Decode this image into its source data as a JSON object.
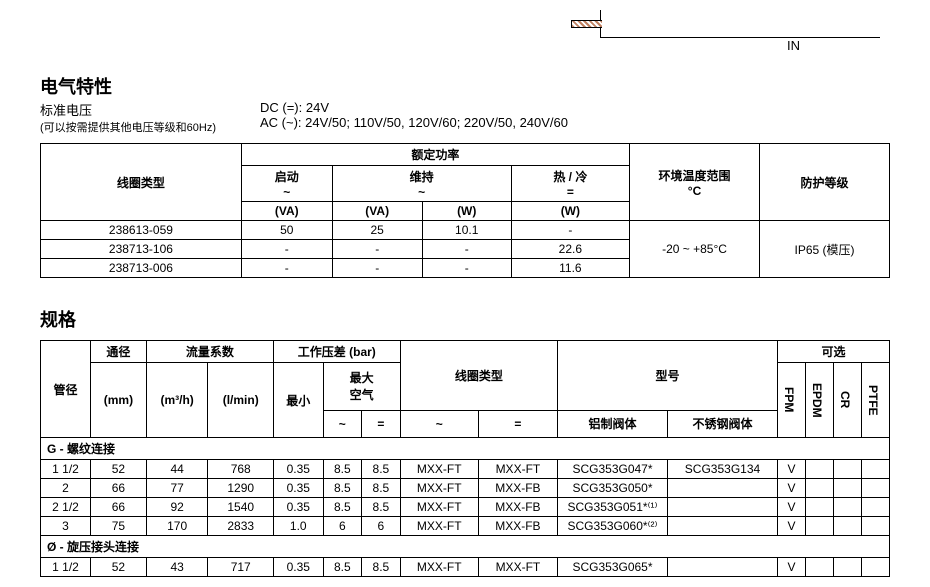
{
  "diagram_label": "IN",
  "section1": {
    "title": "电气特性",
    "std_voltage_label": "标准电压",
    "note": "(可以按需提供其他电压等级和60Hz)",
    "dc_line": "DC (=): 24V",
    "ac_line": "AC (~): 24V/50; 110V/50, 120V/60; 220V/50, 240V/60"
  },
  "table1": {
    "headers": {
      "coil_type": "线圈类型",
      "rated_power": "额定功率",
      "start": "启动",
      "hold": "维持",
      "hot_cold": "热 / 冷",
      "ambient": "环境温度范围\n°C",
      "ip": "防护等级",
      "va": "(VA)",
      "w": "(W)",
      "tilde": "~",
      "eq": "="
    },
    "rows": [
      {
        "coil": "238613-059",
        "start": "50",
        "hold_va": "25",
        "hold_w": "10.1",
        "hc": "-"
      },
      {
        "coil": "238713-106",
        "start": "-",
        "hold_va": "-",
        "hold_w": "-",
        "hc": "22.6"
      },
      {
        "coil": "238713-006",
        "start": "-",
        "hold_va": "-",
        "hold_w": "-",
        "hc": "11.6"
      }
    ],
    "ambient_val": "-20 ~ +85°C",
    "ip_val": "IP65 (模压)"
  },
  "section2": {
    "title": "规格"
  },
  "table2": {
    "headers": {
      "pipe": "管径",
      "bore": "通径",
      "flow": "流量系数",
      "wp": "工作压差 (bar)",
      "min": "最小",
      "max": "最大",
      "air": "空气",
      "coil_type": "线圈类型",
      "model": "型号",
      "opt": "可选",
      "mm": "(mm)",
      "m3h": "(m³/h)",
      "lmin": "(l/min)",
      "tilde": "~",
      "eq": "=",
      "al_body": "铝制阀体",
      "ss_body": "不锈钢阀体",
      "fpm": "FPM",
      "epdm": "EPDM",
      "cr": "CR",
      "ptfe": "PTFE"
    },
    "g_section": "G - 螺纹连接",
    "o_section": "Ø - 旋压接头连接",
    "g_rows": [
      {
        "pipe": "1 1/2",
        "bore": "52",
        "m3h": "44",
        "lmin": "768",
        "min": "0.35",
        "maxt": "8.5",
        "maxe": "8.5",
        "ct": "MXX-FT",
        "ce": "MXX-FT",
        "al": "SCG353G047*",
        "ss": "SCG353G134",
        "fpm": "V",
        "epdm": "",
        "cr": "",
        "ptfe": ""
      },
      {
        "pipe": "2",
        "bore": "66",
        "m3h": "77",
        "lmin": "1290",
        "min": "0.35",
        "maxt": "8.5",
        "maxe": "8.5",
        "ct": "MXX-FT",
        "ce": "MXX-FB",
        "al": "SCG353G050*",
        "ss": "",
        "fpm": "V",
        "epdm": "",
        "cr": "",
        "ptfe": ""
      },
      {
        "pipe": "2 1/2",
        "bore": "66",
        "m3h": "92",
        "lmin": "1540",
        "min": "0.35",
        "maxt": "8.5",
        "maxe": "8.5",
        "ct": "MXX-FT",
        "ce": "MXX-FB",
        "al": "SCG353G051*⁽¹⁾",
        "ss": "",
        "fpm": "V",
        "epdm": "",
        "cr": "",
        "ptfe": ""
      },
      {
        "pipe": "3",
        "bore": "75",
        "m3h": "170",
        "lmin": "2833",
        "min": "1.0",
        "maxt": "6",
        "maxe": "6",
        "ct": "MXX-FT",
        "ce": "MXX-FB",
        "al": "SCG353G060*⁽²⁾",
        "ss": "",
        "fpm": "V",
        "epdm": "",
        "cr": "",
        "ptfe": ""
      }
    ],
    "o_rows": [
      {
        "pipe": "1 1/2",
        "bore": "52",
        "m3h": "43",
        "lmin": "717",
        "min": "0.35",
        "maxt": "8.5",
        "maxe": "8.5",
        "ct": "MXX-FT",
        "ce": "MXX-FT",
        "al": "SCG353G065*",
        "ss": "",
        "fpm": "V",
        "epdm": "",
        "cr": "",
        "ptfe": ""
      }
    ]
  }
}
